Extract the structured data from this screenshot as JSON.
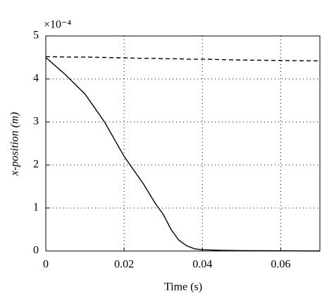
{
  "chart_data": {
    "type": "line",
    "x_label": "Time (s)",
    "y_label": "x-position (m)",
    "y_multiplier": "×10⁻⁴",
    "x": [
      0,
      0.005,
      0.01,
      0.015,
      0.02,
      0.025,
      0.028,
      0.03,
      0.032,
      0.034,
      0.036,
      0.038,
      0.04,
      0.045,
      0.05,
      0.06,
      0.07
    ],
    "series": [
      {
        "color": "#000000",
        "dash": "solid",
        "values": [
          4.5,
          4.1,
          3.65,
          3.0,
          2.2,
          1.55,
          1.1,
          0.85,
          0.5,
          0.25,
          0.12,
          0.05,
          0.03,
          0.015,
          0.01,
          0.005,
          0
        ]
      },
      {
        "color": "#000000",
        "dash": "dashed",
        "values": [
          4.52,
          4.51,
          4.51,
          4.5,
          4.49,
          4.48,
          4.48,
          4.47,
          4.47,
          4.47,
          4.46,
          4.46,
          4.46,
          4.45,
          4.44,
          4.43,
          4.42
        ]
      }
    ],
    "xlim": [
      0,
      0.07
    ],
    "ylim": [
      0,
      5
    ],
    "xticks": [
      0,
      0.02,
      0.04,
      0.06
    ],
    "yticks": [
      0,
      1,
      2,
      3,
      4,
      5
    ],
    "grid": true
  }
}
